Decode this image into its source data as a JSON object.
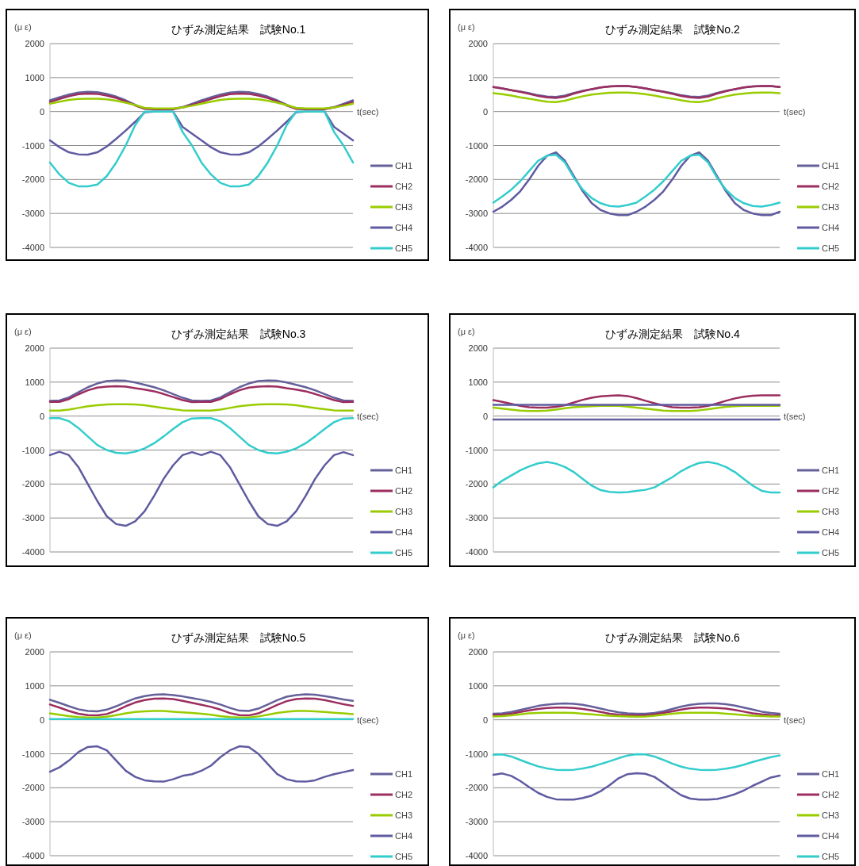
{
  "chart_data": [
    {
      "type": "line",
      "title": "ひずみ測定結果　試験No.1",
      "ylabel": "(μ ε)",
      "xlabel": "t(sec)",
      "grid": "y",
      "legend": "right",
      "tick_labels": "y",
      "ylim": [
        -4000,
        2000
      ],
      "yticks": [
        2000,
        1000,
        0,
        -1000,
        -2000,
        -3000,
        -4000
      ],
      "categories": [
        null,
        null,
        null,
        null,
        null,
        null,
        null,
        null,
        null,
        null,
        null,
        null,
        null,
        null,
        null,
        null,
        null,
        null,
        null,
        null,
        null,
        null,
        null,
        null,
        null,
        null,
        null,
        null,
        null,
        null,
        null,
        null,
        null
      ],
      "series": [
        {
          "name": "CH1",
          "color": "#64609a",
          "values": [
            330,
            420,
            500,
            560,
            580,
            570,
            520,
            440,
            330,
            200,
            90,
            80,
            80,
            80,
            130,
            230,
            330,
            420,
            500,
            560,
            580,
            570,
            520,
            440,
            330,
            200,
            90,
            80,
            80,
            80,
            130,
            230,
            330
          ]
        },
        {
          "name": "CH2",
          "color": "#9b2d5f",
          "values": [
            280,
            370,
            450,
            510,
            530,
            520,
            470,
            400,
            300,
            180,
            80,
            70,
            70,
            70,
            120,
            200,
            280,
            370,
            450,
            510,
            530,
            520,
            470,
            400,
            300,
            180,
            80,
            70,
            70,
            70,
            120,
            200,
            280
          ]
        },
        {
          "name": "CH3",
          "color": "#99cc00",
          "values": [
            230,
            290,
            340,
            370,
            380,
            380,
            360,
            320,
            260,
            190,
            110,
            90,
            90,
            90,
            120,
            170,
            230,
            290,
            340,
            370,
            380,
            380,
            360,
            320,
            260,
            190,
            110,
            90,
            90,
            90,
            120,
            170,
            230
          ]
        },
        {
          "name": "CH4",
          "color": "#5f5ba0",
          "values": [
            -850,
            -1050,
            -1200,
            -1260,
            -1270,
            -1200,
            -1030,
            -800,
            -560,
            -300,
            -20,
            0,
            0,
            0,
            -450,
            -650,
            -850,
            -1050,
            -1200,
            -1260,
            -1270,
            -1200,
            -1030,
            -800,
            -560,
            -300,
            -20,
            0,
            0,
            0,
            -450,
            -650,
            -850
          ]
        },
        {
          "name": "CH5",
          "color": "#33cccc",
          "values": [
            -1500,
            -1850,
            -2100,
            -2200,
            -2200,
            -2150,
            -1900,
            -1500,
            -1000,
            -400,
            0,
            0,
            0,
            0,
            -600,
            -1000,
            -1500,
            -1850,
            -2100,
            -2200,
            -2200,
            -2150,
            -1900,
            -1500,
            -1000,
            -400,
            0,
            0,
            0,
            0,
            -600,
            -1000,
            -1500
          ]
        }
      ]
    },
    {
      "type": "line",
      "title": "ひずみ測定結果　試験No.2",
      "ylabel": "(μ ε)",
      "xlabel": "t(sec)",
      "grid": "y",
      "legend": "right",
      "tick_labels": "y",
      "ylim": [
        -4000,
        2000
      ],
      "yticks": [
        2000,
        1000,
        0,
        -1000,
        -2000,
        -3000,
        -4000
      ],
      "categories": [
        null,
        null,
        null,
        null,
        null,
        null,
        null,
        null,
        null,
        null,
        null,
        null,
        null,
        null,
        null,
        null,
        null,
        null,
        null,
        null,
        null,
        null,
        null,
        null,
        null,
        null,
        null,
        null,
        null,
        null,
        null,
        null,
        null
      ],
      "series": [
        {
          "name": "CH1",
          "color": "#64609a",
          "values": [
            720,
            680,
            630,
            590,
            540,
            480,
            440,
            430,
            470,
            550,
            610,
            660,
            710,
            740,
            750,
            750,
            720,
            680,
            630,
            590,
            540,
            480,
            440,
            430,
            470,
            550,
            610,
            660,
            710,
            740,
            750,
            750,
            720
          ]
        },
        {
          "name": "CH2",
          "color": "#9b2d5f",
          "values": [
            720,
            680,
            630,
            580,
            520,
            460,
            420,
            400,
            440,
            530,
            600,
            660,
            710,
            740,
            750,
            750,
            720,
            680,
            630,
            580,
            520,
            460,
            420,
            400,
            440,
            530,
            600,
            660,
            710,
            740,
            750,
            750,
            720
          ]
        },
        {
          "name": "CH3",
          "color": "#99cc00",
          "values": [
            540,
            510,
            470,
            420,
            380,
            330,
            290,
            280,
            320,
            390,
            450,
            500,
            530,
            550,
            560,
            560,
            540,
            510,
            470,
            420,
            380,
            330,
            290,
            280,
            320,
            390,
            450,
            500,
            530,
            550,
            560,
            560,
            540
          ]
        },
        {
          "name": "CH4",
          "color": "#5f5ba0",
          "values": [
            -2950,
            -2800,
            -2600,
            -2350,
            -2000,
            -1600,
            -1300,
            -1200,
            -1450,
            -1900,
            -2350,
            -2700,
            -2900,
            -3000,
            -3050,
            -3050,
            -2950,
            -2800,
            -2600,
            -2350,
            -2000,
            -1600,
            -1300,
            -1200,
            -1450,
            -1900,
            -2350,
            -2700,
            -2900,
            -3000,
            -3050,
            -3050,
            -2950
          ]
        },
        {
          "name": "CH5",
          "color": "#33cccc",
          "values": [
            -2680,
            -2500,
            -2300,
            -2050,
            -1750,
            -1450,
            -1300,
            -1270,
            -1500,
            -1950,
            -2300,
            -2550,
            -2700,
            -2780,
            -2800,
            -2750,
            -2680,
            -2500,
            -2300,
            -2050,
            -1750,
            -1450,
            -1300,
            -1270,
            -1500,
            -1950,
            -2300,
            -2550,
            -2700,
            -2780,
            -2800,
            -2750,
            -2680
          ]
        }
      ]
    },
    {
      "type": "line",
      "title": "ひずみ測定結果　試験No.3",
      "ylabel": "(μ ε)",
      "xlabel": "t(sec)",
      "grid": "y",
      "legend": "right",
      "tick_labels": "y",
      "ylim": [
        -4000,
        2000
      ],
      "yticks": [
        2000,
        1000,
        0,
        -1000,
        -2000,
        -3000,
        -4000
      ],
      "categories": [
        null,
        null,
        null,
        null,
        null,
        null,
        null,
        null,
        null,
        null,
        null,
        null,
        null,
        null,
        null,
        null,
        null,
        null,
        null,
        null,
        null,
        null,
        null,
        null,
        null,
        null,
        null,
        null,
        null,
        null,
        null,
        null,
        null
      ],
      "series": [
        {
          "name": "CH1",
          "color": "#64609a",
          "values": [
            450,
            460,
            550,
            700,
            850,
            960,
            1030,
            1050,
            1040,
            990,
            920,
            850,
            760,
            650,
            540,
            460,
            450,
            460,
            550,
            700,
            850,
            960,
            1030,
            1050,
            1040,
            990,
            920,
            850,
            760,
            650,
            540,
            460,
            450
          ]
        },
        {
          "name": "CH2",
          "color": "#9b2d5f",
          "values": [
            420,
            420,
            500,
            640,
            760,
            840,
            870,
            880,
            870,
            820,
            780,
            730,
            650,
            560,
            470,
            410,
            420,
            420,
            500,
            640,
            760,
            840,
            870,
            880,
            870,
            820,
            780,
            730,
            650,
            560,
            470,
            410,
            420
          ]
        },
        {
          "name": "CH3",
          "color": "#99cc00",
          "values": [
            160,
            160,
            190,
            240,
            290,
            320,
            340,
            350,
            350,
            340,
            320,
            280,
            240,
            200,
            170,
            160,
            160,
            160,
            190,
            240,
            290,
            320,
            340,
            350,
            350,
            340,
            320,
            280,
            240,
            200,
            170,
            160,
            160
          ]
        },
        {
          "name": "CH4",
          "color": "#5f5ba0",
          "values": [
            -1150,
            -1050,
            -1150,
            -1500,
            -2000,
            -2500,
            -2950,
            -3180,
            -3230,
            -3100,
            -2800,
            -2350,
            -1850,
            -1450,
            -1150,
            -1060,
            -1150,
            -1050,
            -1150,
            -1500,
            -2000,
            -2500,
            -2950,
            -3180,
            -3230,
            -3100,
            -2800,
            -2350,
            -1850,
            -1450,
            -1150,
            -1060,
            -1150
          ]
        },
        {
          "name": "CH5",
          "color": "#33cccc",
          "values": [
            -60,
            -60,
            -150,
            -350,
            -600,
            -850,
            -1000,
            -1080,
            -1100,
            -1050,
            -950,
            -800,
            -600,
            -380,
            -180,
            -70,
            -60,
            -60,
            -150,
            -350,
            -600,
            -850,
            -1000,
            -1080,
            -1100,
            -1050,
            -950,
            -800,
            -600,
            -380,
            -180,
            -70,
            -60
          ]
        }
      ]
    },
    {
      "type": "line",
      "title": "ひずみ測定結果　試験No.4",
      "ylabel": "(μ ε)",
      "xlabel": "t(sec)",
      "grid": "y",
      "legend": "right",
      "tick_labels": "y",
      "ylim": [
        -4000,
        2000
      ],
      "yticks": [
        2000,
        1000,
        0,
        -1000,
        -2000,
        -3000,
        -4000
      ],
      "categories": [
        null,
        null,
        null,
        null,
        null,
        null,
        null,
        null,
        null,
        null,
        null,
        null,
        null,
        null,
        null,
        null,
        null,
        null,
        null,
        null,
        null,
        null,
        null,
        null,
        null,
        null,
        null,
        null,
        null,
        null,
        null,
        null,
        null
      ],
      "series": [
        {
          "name": "CH1",
          "color": "#64609a",
          "values": [
            -100,
            -100,
            -100,
            -100,
            -100,
            -100,
            -100,
            -100,
            -100,
            -100,
            -100,
            -100,
            -100,
            -100,
            -100,
            -100,
            -100,
            -100,
            -100,
            -100,
            -100,
            -100,
            -100,
            -100,
            -100,
            -100,
            -100,
            -100,
            -100,
            -100,
            -100,
            -100,
            -100
          ]
        },
        {
          "name": "CH2",
          "color": "#9b2d5f",
          "values": [
            470,
            420,
            360,
            300,
            260,
            250,
            250,
            270,
            320,
            400,
            480,
            540,
            580,
            600,
            610,
            590,
            530,
            450,
            380,
            310,
            260,
            250,
            250,
            260,
            300,
            370,
            450,
            520,
            570,
            600,
            610,
            610,
            610
          ]
        },
        {
          "name": "CH3",
          "color": "#99cc00",
          "values": [
            250,
            220,
            190,
            160,
            150,
            150,
            160,
            190,
            230,
            260,
            280,
            290,
            300,
            300,
            300,
            280,
            250,
            220,
            190,
            160,
            150,
            150,
            150,
            170,
            200,
            240,
            270,
            290,
            300,
            300,
            300,
            300,
            300
          ]
        },
        {
          "name": "CH4",
          "color": "#5f5ba0",
          "values": [
            330,
            330,
            330,
            330,
            330,
            330,
            330,
            330,
            330,
            330,
            330,
            330,
            330,
            330,
            330,
            330,
            330,
            330,
            330,
            330,
            330,
            330,
            330,
            330,
            330,
            330,
            330,
            330,
            330,
            330,
            330,
            330,
            330
          ]
        },
        {
          "name": "CH5",
          "color": "#33cccc",
          "values": [
            -2100,
            -1900,
            -1750,
            -1600,
            -1480,
            -1390,
            -1350,
            -1400,
            -1500,
            -1650,
            -1850,
            -2050,
            -2180,
            -2230,
            -2250,
            -2240,
            -2200,
            -2170,
            -2100,
            -1950,
            -1800,
            -1620,
            -1480,
            -1380,
            -1350,
            -1400,
            -1500,
            -1650,
            -1850,
            -2050,
            -2200,
            -2250,
            -2250
          ]
        }
      ]
    },
    {
      "type": "line",
      "title": "ひずみ測定結果　試験No.5",
      "ylabel": "(μ ε)",
      "xlabel": "t(sec)",
      "grid": "y",
      "legend": "right",
      "tick_labels": "y",
      "ylim": [
        -4000,
        2000
      ],
      "yticks": [
        2000,
        1000,
        0,
        -1000,
        -2000,
        -3000,
        -4000
      ],
      "categories": [
        null,
        null,
        null,
        null,
        null,
        null,
        null,
        null,
        null,
        null,
        null,
        null,
        null,
        null,
        null,
        null,
        null,
        null,
        null,
        null,
        null,
        null,
        null,
        null,
        null,
        null,
        null,
        null,
        null,
        null,
        null,
        null,
        null
      ],
      "series": [
        {
          "name": "CH1",
          "color": "#64609a",
          "values": [
            590,
            500,
            400,
            310,
            260,
            250,
            300,
            400,
            520,
            630,
            700,
            740,
            750,
            730,
            690,
            640,
            590,
            530,
            450,
            350,
            270,
            260,
            330,
            450,
            580,
            680,
            730,
            750,
            740,
            700,
            650,
            600,
            560
          ]
        },
        {
          "name": "CH2",
          "color": "#9b2d5f",
          "values": [
            450,
            360,
            260,
            180,
            140,
            130,
            170,
            270,
            400,
            510,
            580,
            620,
            630,
            610,
            560,
            500,
            440,
            380,
            300,
            200,
            140,
            130,
            190,
            310,
            440,
            550,
            610,
            630,
            620,
            580,
            520,
            460,
            410
          ]
        },
        {
          "name": "CH3",
          "color": "#99cc00",
          "values": [
            190,
            150,
            110,
            80,
            70,
            70,
            90,
            140,
            190,
            230,
            250,
            260,
            260,
            240,
            220,
            200,
            180,
            150,
            110,
            80,
            70,
            70,
            100,
            150,
            200,
            240,
            260,
            260,
            250,
            230,
            210,
            190,
            170
          ]
        },
        {
          "name": "CH4",
          "color": "#5f5ba0",
          "values": [
            -1530,
            -1400,
            -1200,
            -950,
            -800,
            -780,
            -900,
            -1200,
            -1500,
            -1680,
            -1780,
            -1810,
            -1820,
            -1750,
            -1650,
            -1600,
            -1500,
            -1350,
            -1100,
            -900,
            -780,
            -800,
            -1000,
            -1300,
            -1600,
            -1750,
            -1810,
            -1820,
            -1780,
            -1680,
            -1600,
            -1540,
            -1480
          ]
        },
        {
          "name": "CH5",
          "color": "#33cccc",
          "values": [
            20,
            20,
            20,
            20,
            20,
            20,
            20,
            20,
            20,
            20,
            20,
            20,
            20,
            20,
            20,
            20,
            20,
            20,
            20,
            20,
            20,
            20,
            20,
            20,
            20,
            20,
            20,
            20,
            20,
            20,
            20,
            20,
            20
          ]
        }
      ]
    },
    {
      "type": "line",
      "title": "ひずみ測定結果　試験No.6",
      "ylabel": "(μ ε)",
      "xlabel": "t(sec)",
      "grid": "y",
      "legend": "right",
      "tick_labels": "y",
      "ylim": [
        -4000,
        2000
      ],
      "yticks": [
        2000,
        1000,
        0,
        -1000,
        -2000,
        -3000,
        -4000
      ],
      "categories": [
        null,
        null,
        null,
        null,
        null,
        null,
        null,
        null,
        null,
        null,
        null,
        null,
        null,
        null,
        null,
        null,
        null,
        null,
        null,
        null,
        null,
        null,
        null,
        null,
        null,
        null,
        null,
        null,
        null,
        null,
        null,
        null,
        null
      ],
      "series": [
        {
          "name": "CH1",
          "color": "#64609a",
          "values": [
            180,
            190,
            230,
            290,
            350,
            410,
            450,
            470,
            480,
            470,
            440,
            390,
            330,
            270,
            220,
            190,
            180,
            180,
            200,
            250,
            320,
            390,
            440,
            470,
            480,
            480,
            460,
            420,
            360,
            300,
            240,
            200,
            180
          ]
        },
        {
          "name": "CH2",
          "color": "#9b2d5f",
          "values": [
            140,
            150,
            180,
            230,
            280,
            320,
            350,
            360,
            360,
            350,
            320,
            280,
            230,
            180,
            150,
            140,
            130,
            140,
            160,
            200,
            250,
            300,
            340,
            360,
            360,
            350,
            330,
            290,
            240,
            190,
            160,
            140,
            130
          ]
        },
        {
          "name": "CH3",
          "color": "#99cc00",
          "values": [
            100,
            110,
            130,
            160,
            190,
            200,
            210,
            210,
            210,
            200,
            180,
            160,
            140,
            120,
            110,
            100,
            90,
            100,
            120,
            150,
            180,
            200,
            210,
            210,
            210,
            200,
            180,
            160,
            140,
            120,
            110,
            100,
            100
          ]
        },
        {
          "name": "CH4",
          "color": "#5f5ba0",
          "values": [
            -1620,
            -1580,
            -1650,
            -1800,
            -1980,
            -2150,
            -2270,
            -2340,
            -2350,
            -2350,
            -2300,
            -2230,
            -2100,
            -1920,
            -1720,
            -1600,
            -1570,
            -1590,
            -1680,
            -1860,
            -2050,
            -2220,
            -2320,
            -2350,
            -2350,
            -2330,
            -2270,
            -2190,
            -2080,
            -1940,
            -1820,
            -1700,
            -1640
          ]
        },
        {
          "name": "CH5",
          "color": "#33cccc",
          "values": [
            -1030,
            -1020,
            -1080,
            -1180,
            -1280,
            -1370,
            -1430,
            -1470,
            -1480,
            -1470,
            -1430,
            -1380,
            -1300,
            -1220,
            -1130,
            -1050,
            -1010,
            -1020,
            -1080,
            -1180,
            -1290,
            -1380,
            -1440,
            -1470,
            -1480,
            -1470,
            -1440,
            -1390,
            -1320,
            -1240,
            -1170,
            -1100,
            -1050
          ]
        }
      ]
    }
  ]
}
